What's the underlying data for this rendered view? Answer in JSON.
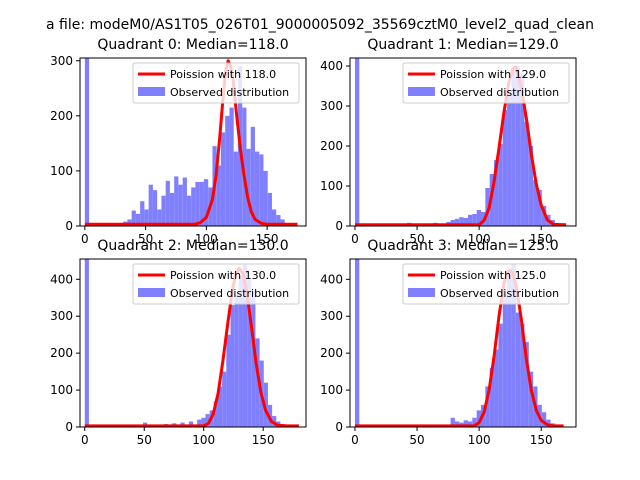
{
  "figure_title": "a file: modeM0/AS1T05_026T01_9000005092_35569cztM0_level2_quad_clean",
  "colors": {
    "poisson": "#ff0000",
    "observed": "#8080ff",
    "axis": "#000000"
  },
  "chart_data": [
    {
      "type": "bar",
      "title": "Quadrant 0: Median=118.0",
      "xlabel": "",
      "ylabel": "",
      "xlim": [
        -4,
        182
      ],
      "ylim": [
        0,
        305
      ],
      "xticks": [
        0,
        50,
        100,
        150
      ],
      "yticks": [
        0,
        100,
        200,
        300
      ],
      "grid": false,
      "legend_position": "upper right",
      "legend": [
        "Poission with 118.0",
        "Observed distribution"
      ],
      "bin_width": 3.5,
      "series": [
        {
          "name": "Observed distribution",
          "kind": "histogram",
          "x": [
            0,
            28,
            31.5,
            35,
            38.5,
            42,
            45.5,
            49,
            52.5,
            56,
            59.5,
            63,
            66.5,
            70,
            73.5,
            77,
            80.5,
            84,
            87.5,
            91,
            94.5,
            98,
            101.5,
            105,
            108.5,
            112,
            115.5,
            119,
            122.5,
            126,
            129.5,
            133,
            136.5,
            140,
            143.5,
            147,
            150.5,
            154,
            157.5,
            161,
            164.5,
            168,
            171.5
          ],
          "values": [
            310,
            5,
            8,
            12,
            28,
            22,
            45,
            30,
            75,
            65,
            30,
            55,
            82,
            60,
            90,
            75,
            88,
            55,
            70,
            80,
            80,
            85,
            70,
            145,
            110,
            170,
            200,
            215,
            135,
            290,
            215,
            140,
            180,
            135,
            130,
            100,
            60,
            30,
            20,
            12,
            5,
            2,
            1
          ]
        },
        {
          "name": "Poission with 118.0",
          "kind": "line",
          "x": [
            0,
            90,
            95,
            100,
            105,
            108,
            111,
            114,
            116,
            118,
            120,
            122,
            125,
            128,
            131,
            134,
            137,
            140,
            145,
            150,
            160,
            170,
            175
          ],
          "values": [
            3,
            3,
            6,
            16,
            48,
            92,
            160,
            240,
            283,
            300,
            290,
            265,
            200,
            140,
            92,
            52,
            26,
            12,
            5,
            3,
            3,
            3,
            3
          ]
        }
      ]
    },
    {
      "type": "bar",
      "title": "Quadrant 1: Median=129.0",
      "xlabel": "",
      "ylabel": "",
      "xlim": [
        -4,
        178
      ],
      "ylim": [
        0,
        420
      ],
      "xticks": [
        0,
        50,
        100,
        150
      ],
      "yticks": [
        0,
        100,
        200,
        300,
        400
      ],
      "grid": false,
      "legend_position": "upper right",
      "legend": [
        "Poission with 129.0",
        "Observed distribution"
      ],
      "bin_width": 3.5,
      "series": [
        {
          "name": "Observed distribution",
          "kind": "histogram",
          "x": [
            0,
            42,
            63,
            73.5,
            77,
            80.5,
            84,
            87.5,
            91,
            94.5,
            98,
            101.5,
            105,
            108.5,
            112,
            115.5,
            119,
            122.5,
            126,
            129.5,
            133,
            136.5,
            140,
            143.5,
            147,
            150.5,
            154,
            157.5,
            161
          ],
          "values": [
            420,
            8,
            8,
            10,
            15,
            18,
            22,
            20,
            28,
            30,
            40,
            35,
            95,
            130,
            165,
            205,
            290,
            330,
            390,
            400,
            380,
            260,
            200,
            115,
            90,
            50,
            28,
            15,
            5
          ]
        },
        {
          "name": "Poission with 129.0",
          "kind": "line",
          "x": [
            0,
            100,
            104,
            108,
            112,
            116,
            120,
            124,
            127,
            129,
            131,
            134,
            138,
            142,
            146,
            150,
            155,
            160,
            170
          ],
          "values": [
            3,
            3,
            14,
            45,
            110,
            195,
            285,
            360,
            392,
            398,
            388,
            345,
            270,
            180,
            105,
            52,
            15,
            4,
            3
          ]
        }
      ]
    },
    {
      "type": "bar",
      "title": "Quadrant 2: Median=130.0",
      "xlabel": "",
      "ylabel": "",
      "xlim": [
        -4,
        186
      ],
      "ylim": [
        0,
        455
      ],
      "xticks": [
        0,
        50,
        100,
        150
      ],
      "yticks": [
        0,
        100,
        200,
        300,
        400
      ],
      "grid": false,
      "legend_position": "upper right",
      "legend": [
        "Poission with 130.0",
        "Observed distribution"
      ],
      "bin_width": 3.5,
      "series": [
        {
          "name": "Observed distribution",
          "kind": "histogram",
          "x": [
            0,
            49,
            66.5,
            73.5,
            80.5,
            87.5,
            94.5,
            98,
            101.5,
            105,
            108.5,
            112,
            115.5,
            119,
            122.5,
            126,
            129.5,
            133,
            136.5,
            140,
            143.5,
            147,
            150.5,
            154,
            157.5,
            161,
            164.5,
            168,
            171.5
          ],
          "values": [
            455,
            12,
            8,
            10,
            12,
            15,
            20,
            25,
            35,
            45,
            70,
            110,
            150,
            250,
            330,
            360,
            410,
            440,
            400,
            370,
            240,
            180,
            120,
            60,
            30,
            15,
            8,
            3,
            2
          ]
        },
        {
          "name": "Poission with 130.0",
          "kind": "line",
          "x": [
            0,
            100,
            104,
            108,
            112,
            116,
            120,
            124,
            127,
            130,
            133,
            136,
            140,
            144,
            148,
            152,
            157,
            162,
            170,
            180
          ],
          "values": [
            3,
            3,
            10,
            35,
            90,
            175,
            275,
            370,
            415,
            430,
            415,
            370,
            275,
            175,
            95,
            45,
            15,
            5,
            3,
            3
          ]
        }
      ]
    },
    {
      "type": "bar",
      "title": "Quadrant 3: Median=125.0",
      "xlabel": "",
      "ylabel": "",
      "xlim": [
        -4,
        178
      ],
      "ylim": [
        0,
        455
      ],
      "xticks": [
        0,
        50,
        100,
        150
      ],
      "yticks": [
        0,
        100,
        200,
        300,
        400
      ],
      "grid": false,
      "legend_position": "upper right",
      "legend": [
        "Poission with 125.0",
        "Observed distribution"
      ],
      "bin_width": 3.5,
      "series": [
        {
          "name": "Observed distribution",
          "kind": "histogram",
          "x": [
            0,
            77,
            80.5,
            84,
            87.5,
            91,
            94.5,
            98,
            101.5,
            105,
            108.5,
            112,
            115.5,
            119,
            122.5,
            126,
            129.5,
            133,
            136.5,
            140,
            143.5,
            147,
            150.5,
            154,
            157.5,
            161
          ],
          "values": [
            455,
            25,
            15,
            12,
            18,
            15,
            25,
            45,
            60,
            110,
            160,
            210,
            280,
            360,
            420,
            440,
            310,
            280,
            230,
            150,
            110,
            60,
            40,
            20,
            10,
            5
          ]
        },
        {
          "name": "Poission with 125.0",
          "kind": "line",
          "x": [
            0,
            96,
            100,
            104,
            108,
            112,
            116,
            120,
            123,
            125,
            127,
            130,
            134,
            138,
            142,
            146,
            150,
            155,
            160,
            168
          ],
          "values": [
            3,
            3,
            12,
            40,
            100,
            190,
            300,
            390,
            420,
            425,
            418,
            380,
            290,
            185,
            100,
            45,
            18,
            6,
            3,
            3
          ]
        }
      ]
    }
  ]
}
